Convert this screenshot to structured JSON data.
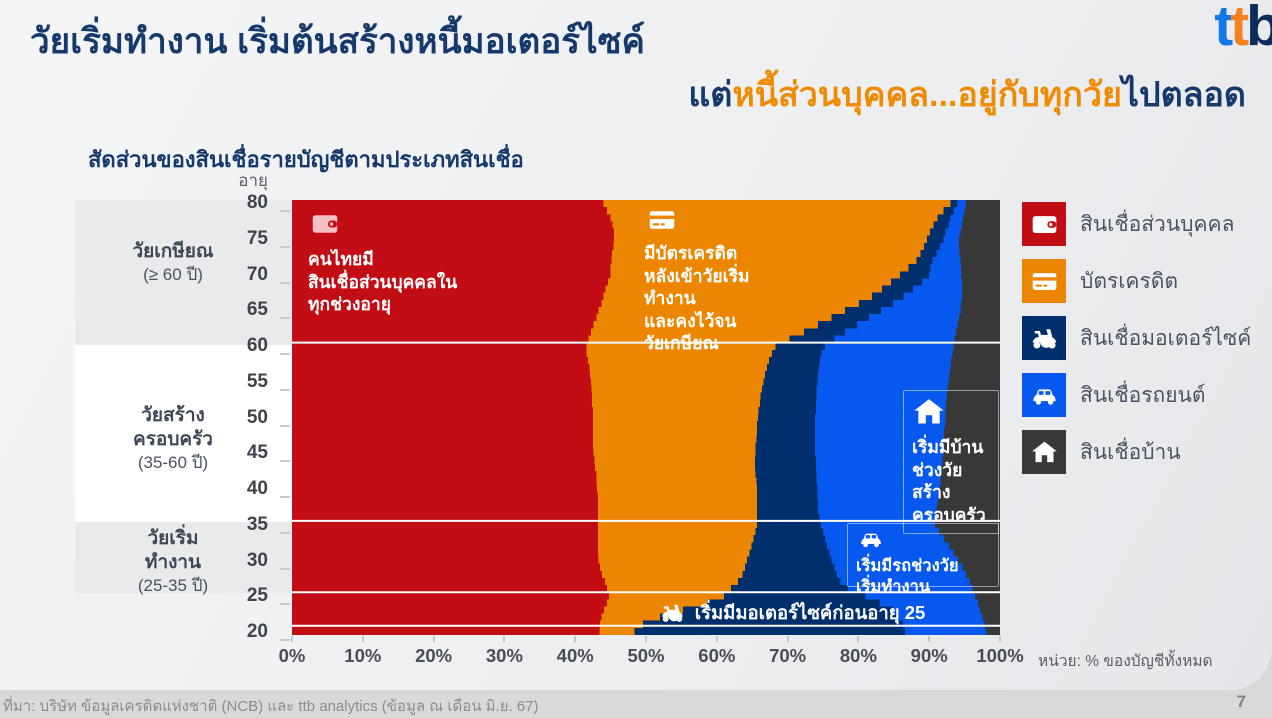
{
  "header": {
    "title_line1": "วัยเริ่มทำงาน เริ่มต้นสร้างหนี้มอเตอร์ไซค์",
    "title_line2_prefix": "แต่",
    "title_line2_highlight": "หนี้ส่วนบุคคล...อยู่กับทุกวัย",
    "title_line2_suffix": "ไปตลอด",
    "colors": {
      "title_navy": "#16386B",
      "highlight_orange": "#F08A00"
    },
    "logo": {
      "text": "ttb",
      "letter_colors": [
        "#1277E8",
        "#F5821F",
        "#0B2B5B"
      ]
    }
  },
  "chart": {
    "title": "สัดส่วนของสินเชื่อรายบัญชีตามประเภทสินเชื่อ",
    "y_axis_label": "อายุ",
    "unit_note": "หน่วย: % ของบัญชีทั้งหมด",
    "y_ticks": [
      80,
      75,
      70,
      65,
      60,
      55,
      50,
      45,
      40,
      35,
      30,
      25,
      20
    ],
    "x_ticks": [
      "0%",
      "10%",
      "20%",
      "30%",
      "40%",
      "50%",
      "60%",
      "70%",
      "80%",
      "90%",
      "100%"
    ],
    "age_bands": [
      {
        "name": "วัยเกษียณ",
        "range": "(≥ 60 ปี)",
        "from": 60,
        "to": 80,
        "shaded": true
      },
      {
        "name": "วัยสร้าง\nครอบครัว",
        "range": "(35-60 ปี)",
        "from": 35,
        "to": 60,
        "shaded": false
      },
      {
        "name": "วัยเริ่ม\nทำงาน",
        "range": "(25-35 ปี)",
        "from": 25,
        "to": 35,
        "shaded": true
      }
    ]
  },
  "annotations": {
    "personal": {
      "icon": "wallet",
      "text": "คนไทยมี\nสินเชื่อส่วนบุคคลใน\nทุกช่วงอายุ"
    },
    "credit": {
      "icon": "credit-card",
      "text": "มีบัตรเครดิต\nหลังเข้าวัยเริ่ม\nทำงาน\nและคงไว้จน\nวัยเกษียณ"
    },
    "home": {
      "icon": "house",
      "text": "เริ่มมีบ้าน\nช่วงวัย\nสร้าง\nครอบครัว"
    },
    "car": {
      "icon": "car",
      "text": "เริ่มมีรถช่วงวัย\nเริ่มทำงาน"
    },
    "motorcycle": {
      "icon": "scooter",
      "text": "เริ่มมีมอเตอร์ไซค์ก่อนอายุ 25"
    }
  },
  "legend": {
    "items": [
      {
        "label": "สินเชื่อส่วนบุคคล",
        "color": "#C20D14",
        "icon": "wallet"
      },
      {
        "label": "บัตรเครดิต",
        "color": "#EC8500",
        "icon": "credit-card"
      },
      {
        "label": "สินเชื่อมอเตอร์ไซค์",
        "color": "#002F6E",
        "icon": "scooter"
      },
      {
        "label": "สินเชื่อรถยนต์",
        "color": "#0758EF",
        "icon": "car"
      },
      {
        "label": "สินเชื่อบ้าน",
        "color": "#383838",
        "icon": "house"
      }
    ]
  },
  "footer": {
    "source": "ที่มา: บริษัท ข้อมูลเครดิตแห่งชาติ (NCB) และ ttb analytics (ข้อมูล ณ เดือน มิ.ย. 67)",
    "page_number": "7"
  },
  "chart_data": {
    "type": "area",
    "stacked": true,
    "orientation": "horizontal: age on y-axis (80 top to 20 bottom), share of accounts % on x-axis",
    "x_range": [
      0,
      100
    ],
    "age_range": [
      20,
      80
    ],
    "ages_descending": [
      80,
      79,
      78,
      77,
      76,
      75,
      74,
      73,
      72,
      71,
      70,
      69,
      68,
      67,
      66,
      65,
      64,
      63,
      62,
      61,
      60,
      59,
      58,
      57,
      56,
      55,
      54,
      53,
      52,
      51,
      50,
      49,
      48,
      47,
      46,
      45,
      44,
      43,
      42,
      41,
      40,
      39,
      38,
      37,
      36,
      35,
      34,
      33,
      32,
      31,
      30,
      29,
      28,
      27,
      26,
      25,
      24,
      23,
      22,
      21,
      20
    ],
    "white_grid_ages": [
      60,
      35,
      25,
      20.3
    ],
    "series": [
      {
        "name": "สินเชื่อส่วนบุคคล",
        "color": "#C20D14",
        "cumulative_right_edge_pct": [
          44,
          44.5,
          45,
          45.3,
          45.5,
          45.5,
          45.4,
          45.2,
          45.1,
          45,
          45,
          44.6,
          44.3,
          44,
          43.7,
          43.3,
          43,
          42.6,
          42.2,
          41.9,
          41.6,
          41.6,
          41.8,
          42,
          42.1,
          42.2,
          42.3,
          42.4,
          42.4,
          42.5,
          42.5,
          42.5,
          42.5,
          42.5,
          42.5,
          42.6,
          42.7,
          42.8,
          43,
          43,
          43.1,
          43.2,
          43.2,
          43.2,
          43.2,
          43.2,
          43.2,
          43.2,
          43.2,
          43.2,
          43.3,
          43.5,
          43.8,
          44.2,
          44.5,
          44.8,
          44.5,
          44.1,
          43.7,
          43.5,
          43.4
        ]
      },
      {
        "name": "บัตรเครดิต",
        "color": "#EC8500",
        "cumulative_right_edge_pct": [
          93,
          92,
          91.2,
          90.6,
          90.1,
          89.7,
          89.3,
          88.8,
          88.2,
          87.1,
          85.9,
          84.6,
          83.3,
          81.9,
          80.1,
          78.1,
          76.2,
          74.3,
          72.3,
          70.3,
          68.3,
          67.8,
          67.4,
          67.1,
          66.8,
          66.6,
          66.4,
          66.2,
          66.1,
          65.9,
          65.8,
          65.7,
          65.7,
          65.6,
          65.5,
          65.5,
          65.4,
          65.4,
          65.5,
          65.6,
          65.7,
          65.7,
          65.7,
          65.7,
          65.7,
          65.7,
          65.5,
          65.2,
          64.9,
          64.6,
          64.3,
          64,
          63.6,
          63,
          62,
          61,
          58.6,
          55.2,
          52,
          49.6,
          48.4
        ]
      },
      {
        "name": "สินเชื่อมอเตอร์ไซค์",
        "color": "#002F6E",
        "cumulative_right_edge_pct": [
          94,
          93.5,
          93,
          92.7,
          92.3,
          92,
          91.5,
          91,
          90.5,
          90.2,
          90,
          89,
          87.7,
          86.4,
          84.9,
          83.2,
          81.5,
          79.8,
          78.1,
          76.6,
          75.3,
          74.8,
          74.6,
          74.4,
          74.3,
          74.2,
          74.1,
          74.1,
          74,
          74,
          73.9,
          73.9,
          73.9,
          73.9,
          73.9,
          73.9,
          74,
          74,
          74.1,
          74.1,
          74.2,
          74.2,
          74.3,
          74.3,
          74.5,
          74.7,
          75,
          75.3,
          75.6,
          75.9,
          76.2,
          76.6,
          77,
          77.5,
          78.5,
          81,
          83,
          84.9,
          85.6,
          86.3,
          86.6
        ]
      },
      {
        "name": "สินเชื่อรถยนต์",
        "color": "#0758EF",
        "cumulative_right_edge_pct": [
          95.2,
          95,
          94.8,
          94.6,
          94.4,
          94.2,
          94.2,
          94.3,
          94.4,
          94.5,
          94.5,
          94.6,
          94.6,
          94.6,
          94.5,
          94.4,
          94.2,
          94,
          93.8,
          93.6,
          93.4,
          93.3,
          93.1,
          93,
          92.9,
          92.7,
          92.6,
          92.5,
          92.4,
          92.3,
          92.3,
          92.2,
          92.1,
          92.1,
          92,
          92,
          91.9,
          91.8,
          91.7,
          91.6,
          91.5,
          91.4,
          91.2,
          91,
          90.8,
          90.8,
          91.4,
          92.1,
          92.8,
          93.4,
          94.1,
          94.7,
          95.2,
          95.7,
          96.1,
          96.5,
          96.9,
          97.2,
          97.5,
          97.8,
          98
        ]
      },
      {
        "name": "สินเชื่อบ้าน",
        "color": "#383838",
        "fills_to_pct": 100
      }
    ]
  }
}
